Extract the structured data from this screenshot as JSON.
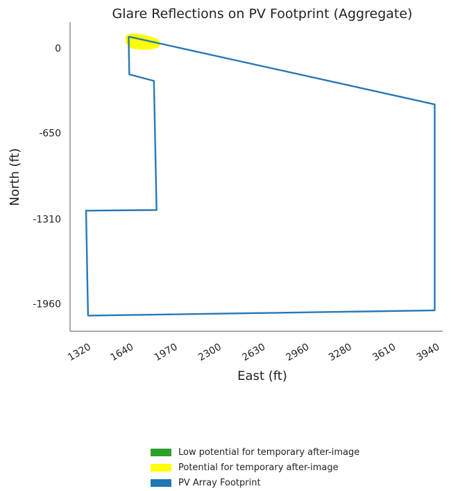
{
  "chart_data": {
    "type": "line",
    "title": "Glare Reflections on PV Footprint (Aggregate)",
    "xlabel": "East (ft)",
    "ylabel": "North (ft)",
    "xlim": [
      1200,
      4000
    ],
    "ylim": [
      -2170,
      200
    ],
    "x_ticks": [
      1320,
      1640,
      1970,
      2300,
      2630,
      2960,
      3280,
      3610,
      3940
    ],
    "y_ticks": [
      0,
      -650,
      -1310,
      -1960
    ],
    "grid": false,
    "series": [
      {
        "name": "PV Array Footprint",
        "color": "#2778b4",
        "x": [
          1640,
          1645,
          1830,
          1850,
          1320,
          1335,
          3940,
          3940,
          1640
        ],
        "y": [
          90,
          -200,
          -250,
          -1240,
          -1245,
          -2050,
          -2010,
          -430,
          90
        ]
      },
      {
        "name": "Potential for temporary after-image",
        "color": "#ffff00",
        "x": [
          1620,
          1625,
          1660,
          1720,
          1800,
          1860,
          1875,
          1850,
          1770,
          1680,
          1630
        ],
        "y": [
          80,
          40,
          5,
          -5,
          -5,
          10,
          40,
          70,
          95,
          110,
          100
        ]
      }
    ]
  },
  "legend": {
    "items": [
      {
        "label": "Low potential for temporary after-image",
        "color": "#2ca02c"
      },
      {
        "label": "Potential for temporary after-image",
        "color": "#ffff00"
      },
      {
        "label": "PV Array Footprint",
        "color": "#1f77b4"
      }
    ]
  }
}
